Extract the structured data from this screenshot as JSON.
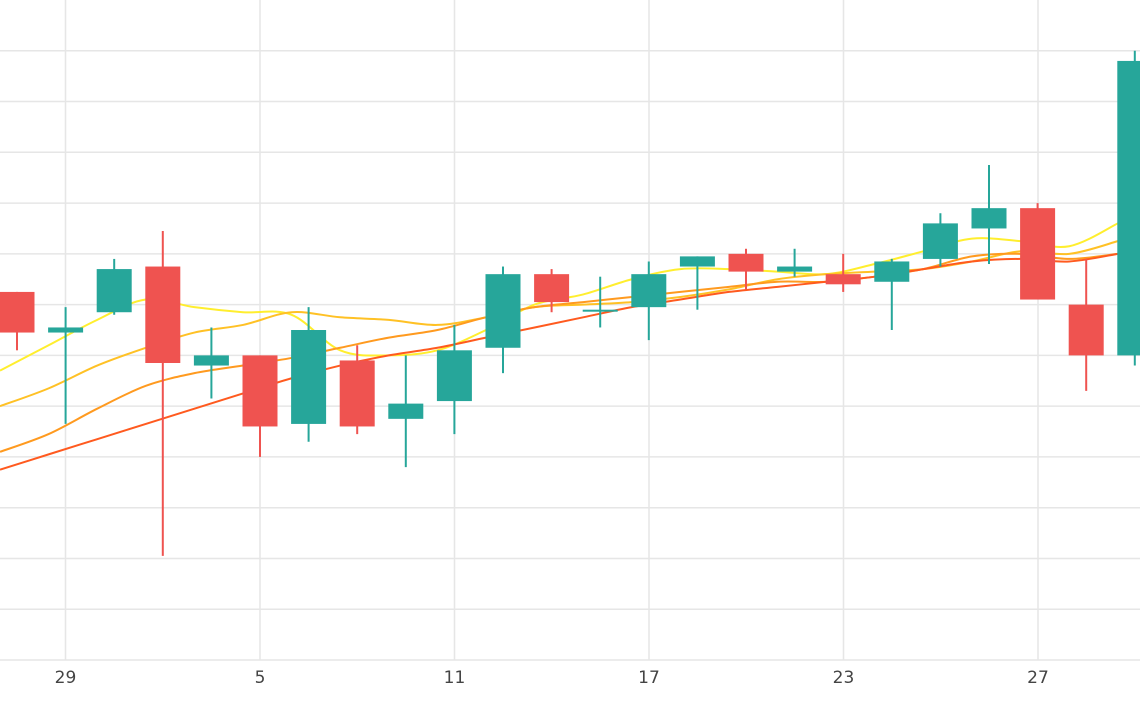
{
  "chart_data": {
    "type": "candlestick",
    "x_tick_labels": [
      "29",
      "5",
      "11",
      "17",
      "23",
      "27"
    ],
    "y_range": [
      0,
      13
    ],
    "grid": true,
    "legend": "none",
    "colors": {
      "up": "#26a69a",
      "down": "#ef5350",
      "grid": "#e6e6e6",
      "ma_1": "#ffee2e",
      "ma_2": "#ffc125",
      "ma_3": "#ff9a1f",
      "ma_4": "#ff5a1f"
    },
    "candles": [
      {
        "open": 7.25,
        "high": 7.25,
        "low": 6.1,
        "close": 6.45
      },
      {
        "open": 6.45,
        "high": 6.95,
        "low": 4.65,
        "close": 6.55
      },
      {
        "open": 6.85,
        "high": 7.9,
        "low": 6.8,
        "close": 7.7
      },
      {
        "open": 7.75,
        "high": 8.45,
        "low": 2.05,
        "close": 5.85
      },
      {
        "open": 5.8,
        "high": 6.55,
        "low": 5.15,
        "close": 6.0
      },
      {
        "open": 6.0,
        "high": 6.0,
        "low": 4.0,
        "close": 4.6
      },
      {
        "open": 4.65,
        "high": 6.95,
        "low": 4.3,
        "close": 6.5
      },
      {
        "open": 5.9,
        "high": 6.2,
        "low": 4.45,
        "close": 4.6
      },
      {
        "open": 4.75,
        "high": 6.0,
        "low": 3.8,
        "close": 5.05
      },
      {
        "open": 5.1,
        "high": 6.6,
        "low": 4.45,
        "close": 6.1
      },
      {
        "open": 6.15,
        "high": 7.75,
        "low": 5.65,
        "close": 7.6
      },
      {
        "open": 7.6,
        "high": 7.7,
        "low": 6.85,
        "close": 7.05
      },
      {
        "open": 6.9,
        "high": 7.55,
        "low": 6.55,
        "close": 6.9
      },
      {
        "open": 6.95,
        "high": 7.85,
        "low": 6.3,
        "close": 7.6
      },
      {
        "open": 7.75,
        "high": 7.95,
        "low": 6.9,
        "close": 7.95
      },
      {
        "open": 8.0,
        "high": 8.1,
        "low": 7.3,
        "close": 7.65
      },
      {
        "open": 7.65,
        "high": 8.1,
        "low": 7.55,
        "close": 7.75
      },
      {
        "open": 7.6,
        "high": 8.0,
        "low": 7.25,
        "close": 7.4
      },
      {
        "open": 7.45,
        "high": 7.9,
        "low": 6.5,
        "close": 7.85
      },
      {
        "open": 7.9,
        "high": 8.8,
        "low": 7.75,
        "close": 8.6
      },
      {
        "open": 8.5,
        "high": 9.75,
        "low": 7.8,
        "close": 8.9
      },
      {
        "open": 8.9,
        "high": 9.0,
        "low": 7.2,
        "close": 7.1
      },
      {
        "open": 7.0,
        "high": 7.9,
        "low": 5.3,
        "close": 6.0
      },
      {
        "open": 6.0,
        "high": 12.0,
        "low": 5.8,
        "close": 11.8
      }
    ],
    "moving_averages": [
      {
        "values": [
          5.7,
          6.2,
          6.7,
          7.1,
          6.95,
          6.85,
          6.8,
          6.1,
          6.0,
          6.1,
          6.5,
          7.0,
          7.2,
          7.5,
          7.7,
          7.7,
          7.65,
          7.6,
          7.8,
          8.05,
          8.3,
          8.25,
          8.15,
          8.6
        ]
      },
      {
        "values": [
          5.0,
          5.35,
          5.8,
          6.15,
          6.45,
          6.6,
          6.85,
          6.75,
          6.7,
          6.6,
          6.75,
          6.95,
          7.0,
          7.05,
          7.15,
          7.3,
          7.5,
          7.6,
          7.65,
          7.7,
          7.85,
          8.05,
          8.0,
          8.25
        ]
      },
      {
        "values": [
          4.1,
          4.45,
          4.95,
          5.4,
          5.65,
          5.8,
          5.95,
          6.15,
          6.35,
          6.5,
          6.75,
          6.95,
          7.05,
          7.15,
          7.25,
          7.35,
          7.45,
          7.45,
          7.55,
          7.7,
          7.95,
          8.0,
          7.9,
          8.0
        ]
      },
      {
        "values": [
          3.75,
          4.05,
          4.35,
          4.65,
          4.95,
          5.25,
          5.55,
          5.8,
          6.0,
          6.15,
          6.35,
          6.55,
          6.75,
          6.95,
          7.1,
          7.25,
          7.35,
          7.45,
          7.55,
          7.7,
          7.85,
          7.9,
          7.85,
          8.0
        ]
      }
    ]
  }
}
